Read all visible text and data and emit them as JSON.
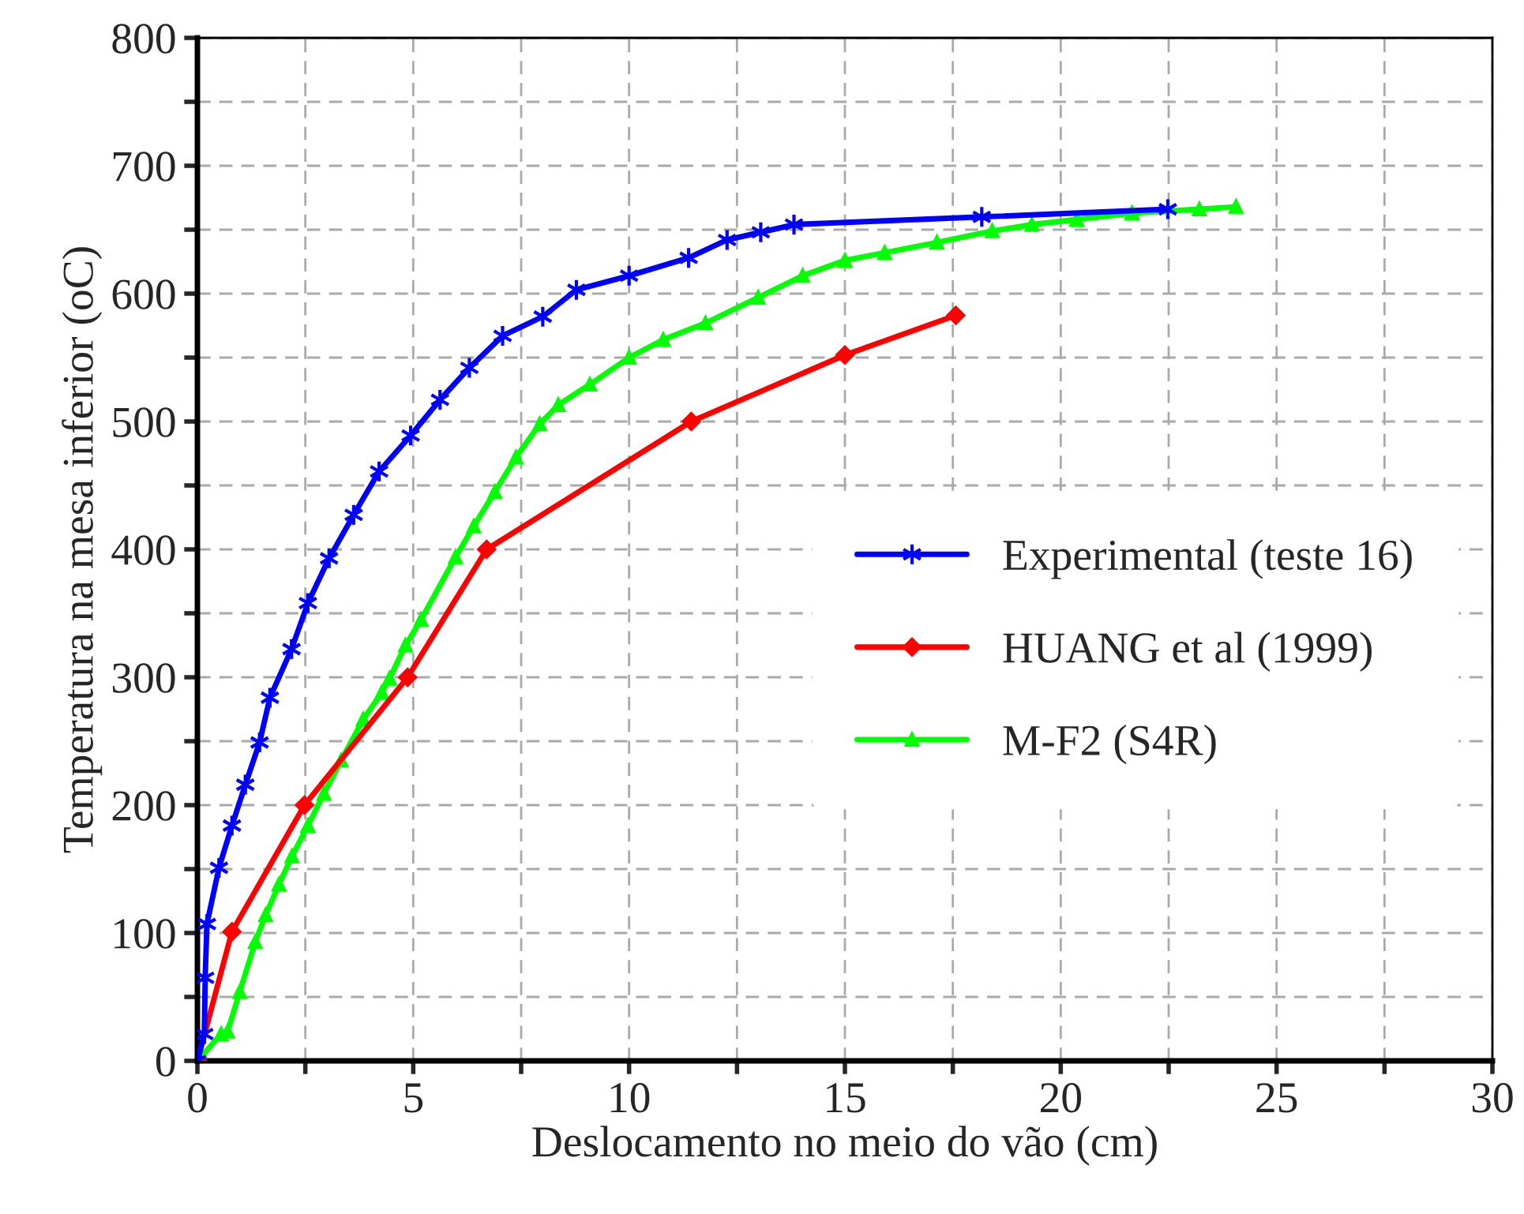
{
  "chart_data": {
    "type": "line",
    "xlabel": "Deslocamento no meio do vão (cm)",
    "ylabel": "Temperatura na mesa inferior (oC)",
    "xlim": [
      0,
      30
    ],
    "ylim": [
      0,
      800
    ],
    "xticks": [
      0,
      {
        "value": 2.5,
        "label": null
      },
      5,
      {
        "value": 7.5,
        "label": null
      },
      10,
      {
        "value": 12.5,
        "label": null
      },
      15,
      {
        "value": 17.5,
        "label": null
      },
      20,
      {
        "value": 22.5,
        "label": null
      },
      25,
      {
        "value": 27.5,
        "label": null
      },
      30
    ],
    "yticks": [
      0,
      {
        "value": 50,
        "label": null
      },
      100,
      {
        "value": 150,
        "label": null
      },
      200,
      {
        "value": 250,
        "label": null
      },
      300,
      {
        "value": 350,
        "label": null
      },
      400,
      {
        "value": 450,
        "label": null
      },
      500,
      {
        "value": 550,
        "label": null
      },
      600,
      {
        "value": 650,
        "label": null
      },
      700,
      {
        "value": 750,
        "label": null
      },
      800
    ],
    "grid": true,
    "legend": "right",
    "series": [
      {
        "name": "Experimental (teste 16)",
        "color": "#0000ff",
        "marker": "cross",
        "x": [
          0,
          0.16,
          0.18,
          0.22,
          0.5,
          0.8,
          1.11,
          1.44,
          1.68,
          2.18,
          2.56,
          3.05,
          3.62,
          4.21,
          4.94,
          5.62,
          6.3,
          7.07,
          8.0,
          8.78,
          10.0,
          11.38,
          12.27,
          13.05,
          13.82,
          18.17,
          22.48
        ],
        "values": [
          0,
          21,
          65,
          107,
          151,
          184,
          216,
          249,
          284,
          322,
          358,
          393,
          427,
          461,
          489,
          517,
          542,
          567,
          582,
          603,
          614,
          628,
          642,
          648,
          654,
          660,
          666
        ]
      },
      {
        "name": "HUANG et al (1999)",
        "color": "#ff0000",
        "marker": "diamond",
        "x": [
          0,
          0.8,
          2.48,
          4.87,
          6.7,
          11.44,
          15.0,
          17.57
        ],
        "values": [
          0,
          101,
          200,
          300,
          400,
          500,
          552,
          583
        ]
      },
      {
        "name": "M-F2 (S4R)",
        "color": "#00ff00",
        "marker": "triangle",
        "x": [
          0,
          0.55,
          0.7,
          0.98,
          1.34,
          1.58,
          1.89,
          2.19,
          2.56,
          2.93,
          3.33,
          3.84,
          4.27,
          4.45,
          4.82,
          5.18,
          5.98,
          6.4,
          6.89,
          7.38,
          7.93,
          8.36,
          9.09,
          10.0,
          10.79,
          11.77,
          12.99,
          14.02,
          15.0,
          15.92,
          17.13,
          18.41,
          19.33,
          20.37,
          21.65,
          23.21,
          24.06
        ],
        "values": [
          0,
          21,
          23,
          54,
          93,
          114,
          138,
          160,
          184,
          209,
          235,
          267,
          288,
          299,
          325,
          345,
          394,
          418,
          445,
          472,
          498,
          513,
          529,
          550,
          564,
          577,
          597,
          614,
          626,
          632,
          640,
          649,
          654,
          658,
          663,
          666,
          668
        ]
      }
    ]
  }
}
